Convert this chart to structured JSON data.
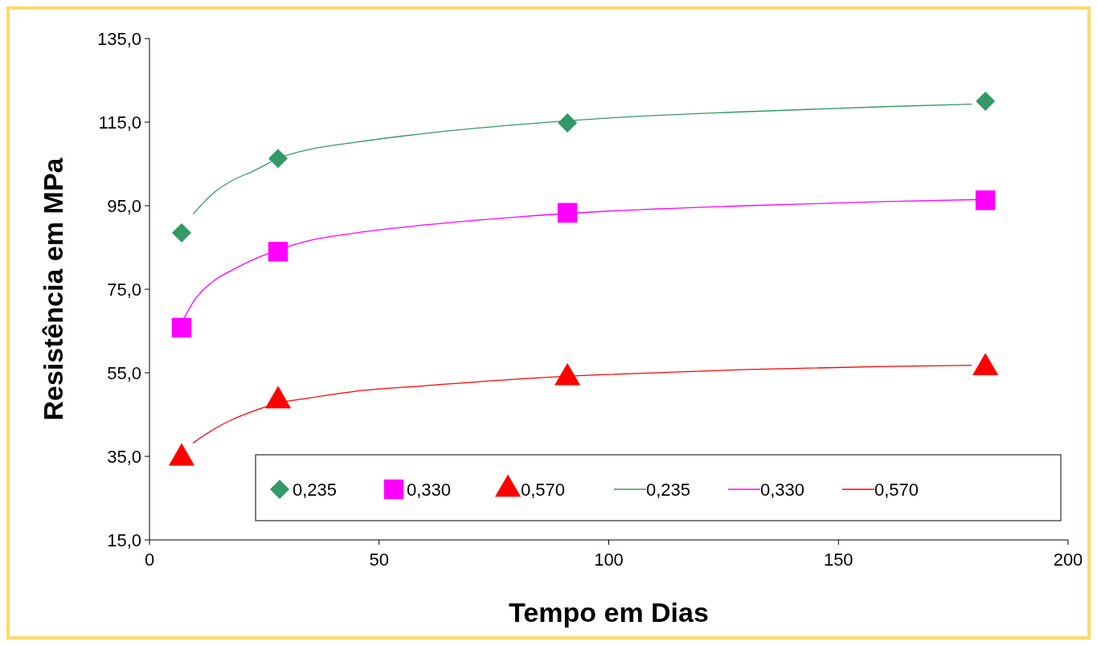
{
  "chart_data": {
    "type": "scatter",
    "xlabel": "Tempo em Dias",
    "ylabel": "Resistência em MPa",
    "xlim": [
      0,
      200
    ],
    "xticks": [
      0,
      50,
      100,
      150,
      200
    ],
    "ylim": [
      15,
      135
    ],
    "yticks": [
      {
        "value": 15,
        "label": "15,0"
      },
      {
        "value": 35,
        "label": "35,0"
      },
      {
        "value": 55,
        "label": "55,0"
      },
      {
        "value": 75,
        "label": "75,0"
      },
      {
        "value": 95,
        "label": "95,0"
      },
      {
        "value": 115,
        "label": "115,0"
      },
      {
        "value": 135,
        "label": "135,0"
      }
    ],
    "grid": false,
    "legend": "bottom",
    "series": [
      {
        "name": "0,235",
        "marker": "diamond",
        "color": "#339966",
        "x": [
          7,
          28,
          91,
          182
        ],
        "values": [
          88.5,
          106.3,
          114.8,
          120
        ]
      },
      {
        "name": "0,330",
        "marker": "square",
        "color": "#ff00ff",
        "x": [
          7,
          28,
          91,
          182
        ],
        "values": [
          65.8,
          84,
          93.3,
          96.3
        ]
      },
      {
        "name": "0,570",
        "marker": "triangle",
        "color": "#ff0000",
        "x": [
          7,
          28,
          91,
          182
        ],
        "values": [
          34.6,
          48.3,
          53.8,
          56.2
        ]
      },
      {
        "name": "0,235",
        "type": "line",
        "marker": "none",
        "color": "#339966",
        "x": [
          9.5,
          14,
          18,
          23,
          28,
          35,
          45,
          60,
          80,
          100,
          130,
          160,
          179
        ],
        "values": [
          93,
          98.1,
          101,
          103.5,
          106.3,
          108.5,
          110.2,
          112.3,
          114.4,
          116,
          117.5,
          118.7,
          119.3
        ]
      },
      {
        "name": "0,330",
        "type": "line",
        "marker": "none",
        "color": "#ff00ff",
        "x": [
          7,
          10,
          14,
          18,
          23,
          28,
          35,
          45,
          60,
          80,
          100,
          130,
          160,
          182
        ],
        "values": [
          67,
          72.7,
          77,
          79.6,
          82.3,
          84.4,
          86.7,
          88.5,
          90.4,
          92.3,
          93.7,
          95,
          96,
          96.5
        ]
      },
      {
        "name": "0,570",
        "type": "line",
        "marker": "none",
        "color": "#ff0000",
        "x": [
          9.5,
          14,
          18,
          23,
          28,
          35,
          45,
          60,
          80,
          100,
          130,
          160,
          179
        ],
        "values": [
          38.2,
          41.5,
          43.8,
          46,
          47.7,
          49,
          50.6,
          51.9,
          53.5,
          54.6,
          55.8,
          56.5,
          56.8
        ]
      }
    ]
  }
}
